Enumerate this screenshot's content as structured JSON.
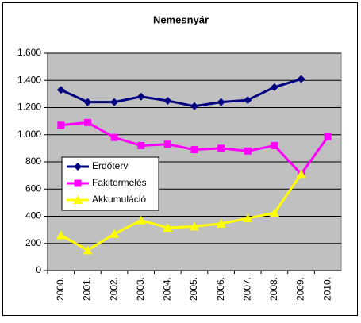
{
  "chart_data": {
    "type": "line",
    "title": "Nemesnyár",
    "categories": [
      "2000.",
      "2001.",
      "2002.",
      "2003.",
      "2004.",
      "2005.",
      "2006.",
      "2007.",
      "2008.",
      "2009.",
      "2010."
    ],
    "series": [
      {
        "name": "Erdőterv",
        "color": "#000080",
        "marker": "diamond",
        "values": [
          1330,
          1240,
          1240,
          1280,
          1250,
          1210,
          1240,
          1255,
          1350,
          1410,
          null
        ]
      },
      {
        "name": "Fakitermelés",
        "color": "#ff00ff",
        "marker": "square",
        "values": [
          1070,
          1090,
          980,
          920,
          930,
          890,
          900,
          880,
          920,
          710,
          985
        ]
      },
      {
        "name": "Akkumuláció",
        "color": "#ffff00",
        "marker": "triangle",
        "values": [
          260,
          150,
          270,
          370,
          315,
          325,
          345,
          385,
          425,
          710,
          null
        ]
      }
    ],
    "ylim": [
      0,
      1600
    ],
    "yticks": [
      0,
      200,
      400,
      600,
      800,
      {
        "value": 1000,
        "label": "1.000"
      },
      {
        "value": 1200,
        "label": "1.200"
      },
      {
        "value": 1400,
        "label": "1.400"
      },
      {
        "value": 1600,
        "label": "1.600"
      }
    ],
    "grid": true,
    "plot_background": "#c0c0c0",
    "legend": "left"
  }
}
